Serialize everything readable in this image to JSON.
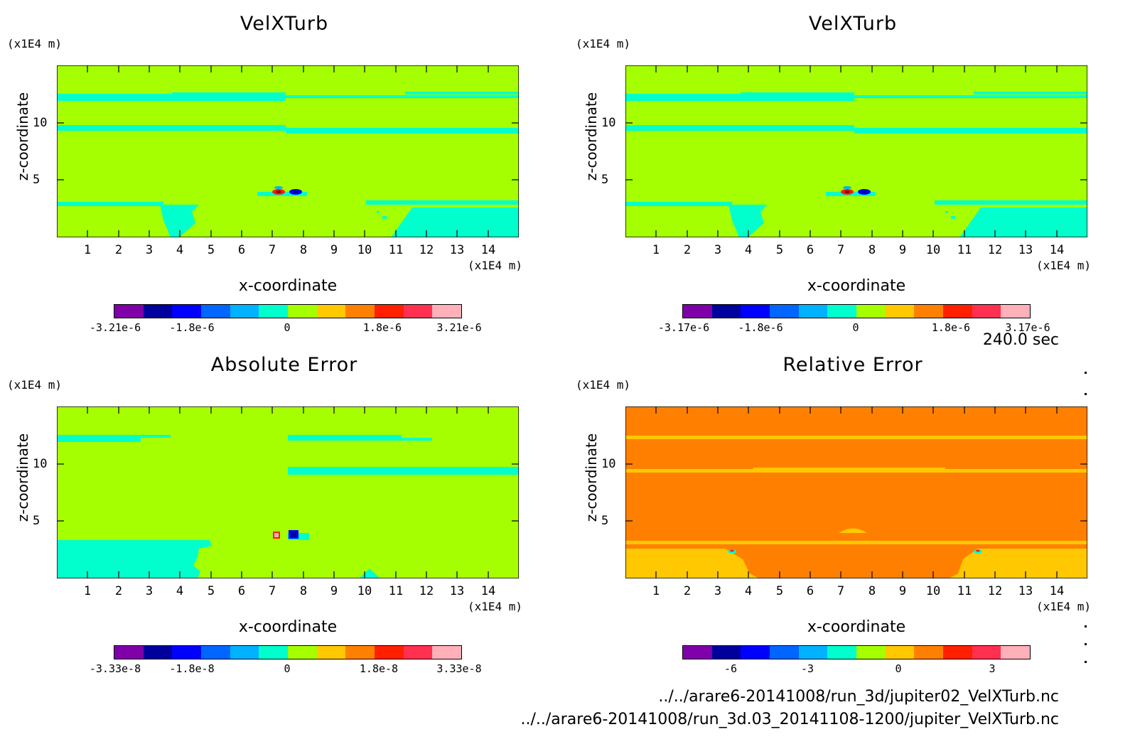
{
  "colors": {
    "scale": [
      "#7f00a8",
      "#00009c",
      "#0000ff",
      "#0066ff",
      "#00b2ff",
      "#00ffcc",
      "#a6ff00",
      "#ffc800",
      "#ff8000",
      "#ff2000",
      "#ff3050",
      "#ffb0b8"
    ],
    "bg_green": "#a6ff00",
    "cyan": "#00ffcc",
    "orange": "#ff8000",
    "amber": "#ffc800"
  },
  "time_label": "240.0 sec",
  "files": [
    "../../arare6-20141008/run_3d/jupiter02_VelXTurb.nc",
    "../../arare6-20141008/run_3d.03_20141108-1200/jupiter_VelXTurb.nc"
  ],
  "chart_data": [
    {
      "type": "heatmap",
      "title": "VelXTurb",
      "xlabel": "x-coordinate",
      "ylabel": "z-coordinate",
      "x_unit": "(x1E4 m)",
      "y_unit": "(x1E4 m)",
      "xlim": [
        0,
        15
      ],
      "ylim": [
        0,
        15
      ],
      "xticks": [
        "1",
        "2",
        "3",
        "4",
        "5",
        "6",
        "7",
        "8",
        "9",
        "10",
        "11",
        "12",
        "13",
        "14"
      ],
      "yticks": [
        "5",
        "10"
      ],
      "colorbar_labels": [
        "-3.21e-6",
        "-1.8e-6",
        "0",
        "1.8e-6",
        "3.21e-6"
      ]
    },
    {
      "type": "heatmap",
      "title": "VelXTurb",
      "xlabel": "x-coordinate",
      "ylabel": "z-coordinate",
      "x_unit": "(x1E4 m)",
      "y_unit": "(x1E4 m)",
      "xlim": [
        0,
        15
      ],
      "ylim": [
        0,
        15
      ],
      "xticks": [
        "1",
        "2",
        "3",
        "4",
        "5",
        "6",
        "7",
        "8",
        "9",
        "10",
        "11",
        "12",
        "13",
        "14"
      ],
      "yticks": [
        "5",
        "10"
      ],
      "colorbar_labels": [
        "-3.17e-6",
        "-1.8e-6",
        "0",
        "1.8e-6",
        "3.17e-6"
      ]
    },
    {
      "type": "heatmap",
      "title": "Absolute Error",
      "xlabel": "x-coordinate",
      "ylabel": "z-coordinate",
      "x_unit": "(x1E4 m)",
      "y_unit": "(x1E4 m)",
      "xlim": [
        0,
        15
      ],
      "ylim": [
        0,
        15
      ],
      "xticks": [
        "1",
        "2",
        "3",
        "4",
        "5",
        "6",
        "7",
        "8",
        "9",
        "10",
        "11",
        "12",
        "13",
        "14"
      ],
      "yticks": [
        "5",
        "10"
      ],
      "colorbar_labels": [
        "-3.33e-8",
        "-1.8e-8",
        "0",
        "1.8e-8",
        "3.33e-8"
      ]
    },
    {
      "type": "heatmap",
      "title": "Relative Error",
      "xlabel": "x-coordinate",
      "ylabel": "z-coordinate",
      "x_unit": "(x1E4 m)",
      "y_unit": "(x1E4 m)",
      "xlim": [
        0,
        15
      ],
      "ylim": [
        0,
        15
      ],
      "xticks": [
        "1",
        "2",
        "3",
        "4",
        "5",
        "6",
        "7",
        "8",
        "9",
        "10",
        "11",
        "12",
        "13",
        "14"
      ],
      "yticks": [
        "5",
        "10"
      ],
      "colorbar_labels": [
        "-6",
        "-3",
        "0",
        "3"
      ]
    }
  ]
}
